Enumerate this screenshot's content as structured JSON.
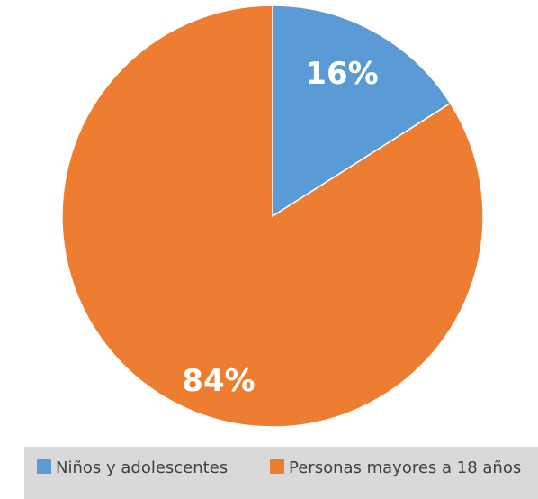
{
  "chart_data": {
    "type": "pie",
    "start_angle": "12 o'clock, clockwise",
    "legend_position": "bottom",
    "series": [
      {
        "name": "Niños y adolescentes",
        "value": 16,
        "label": "16%",
        "color": "#5b9bd5"
      },
      {
        "name": "Personas mayores a 18 años",
        "value": 84,
        "label": "84%",
        "color": "#ed7d31"
      }
    ]
  }
}
